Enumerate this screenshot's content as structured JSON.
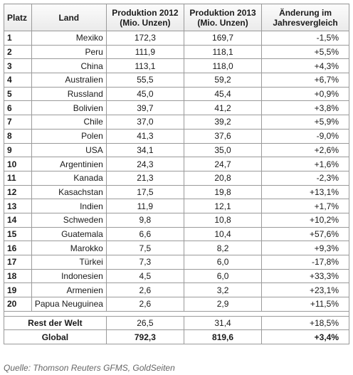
{
  "table": {
    "headers": {
      "rank": "Platz",
      "land": "Land",
      "prod2012": "Produktion 2012 (Mio. Unzen)",
      "prod2013": "Produktion 2013 (Mio. Unzen)",
      "change": "Änderung im Jahresvergleich"
    },
    "rows": [
      {
        "rank": "1",
        "land": "Mexiko",
        "p2012": "172,3",
        "p2013": "169,7",
        "change": "-1,5%"
      },
      {
        "rank": "2",
        "land": "Peru",
        "p2012": "111,9",
        "p2013": "118,1",
        "change": "+5,5%"
      },
      {
        "rank": "3",
        "land": "China",
        "p2012": "113,1",
        "p2013": "118,0",
        "change": "+4,3%"
      },
      {
        "rank": "4",
        "land": "Australien",
        "p2012": "55,5",
        "p2013": "59,2",
        "change": "+6,7%"
      },
      {
        "rank": "5",
        "land": "Russland",
        "p2012": "45,0",
        "p2013": "45,4",
        "change": "+0,9%"
      },
      {
        "rank": "6",
        "land": "Bolivien",
        "p2012": "39,7",
        "p2013": "41,2",
        "change": "+3,8%"
      },
      {
        "rank": "7",
        "land": "Chile",
        "p2012": "37,0",
        "p2013": "39,2",
        "change": "+5,9%"
      },
      {
        "rank": "8",
        "land": "Polen",
        "p2012": "41,3",
        "p2013": "37,6",
        "change": "-9,0%"
      },
      {
        "rank": "9",
        "land": "USA",
        "p2012": "34,1",
        "p2013": "35,0",
        "change": "+2,6%"
      },
      {
        "rank": "10",
        "land": "Argentinien",
        "p2012": "24,3",
        "p2013": "24,7",
        "change": "+1,6%"
      },
      {
        "rank": "11",
        "land": "Kanada",
        "p2012": "21,3",
        "p2013": "20,8",
        "change": "-2,3%"
      },
      {
        "rank": "12",
        "land": "Kasachstan",
        "p2012": "17,5",
        "p2013": "19,8",
        "change": "+13,1%"
      },
      {
        "rank": "13",
        "land": "Indien",
        "p2012": "11,9",
        "p2013": "12,1",
        "change": "+1,7%"
      },
      {
        "rank": "14",
        "land": "Schweden",
        "p2012": "9,8",
        "p2013": "10,8",
        "change": "+10,2%"
      },
      {
        "rank": "15",
        "land": "Guatemala",
        "p2012": "6,6",
        "p2013": "10,4",
        "change": "+57,6%"
      },
      {
        "rank": "16",
        "land": "Marokko",
        "p2012": "7,5",
        "p2013": "8,2",
        "change": "+9,3%"
      },
      {
        "rank": "17",
        "land": "Türkei",
        "p2012": "7,3",
        "p2013": "6,0",
        "change": "-17,8%"
      },
      {
        "rank": "18",
        "land": "Indonesien",
        "p2012": "4,5",
        "p2013": "6,0",
        "change": "+33,3%"
      },
      {
        "rank": "19",
        "land": "Armenien",
        "p2012": "2,6",
        "p2013": "3,2",
        "change": "+23,1%"
      },
      {
        "rank": "20",
        "land": "Papua Neuguinea",
        "p2012": "2,6",
        "p2013": "2,9",
        "change": "+11,5%"
      }
    ],
    "rest": {
      "label": "Rest der Welt",
      "p2012": "26,5",
      "p2013": "31,4",
      "change": "+18,5%"
    },
    "global": {
      "label": "Global",
      "p2012": "792,3",
      "p2013": "819,6",
      "change": "+3,4%"
    }
  },
  "source": "Quelle: Thomson Reuters GFMS, GoldSeiten"
}
